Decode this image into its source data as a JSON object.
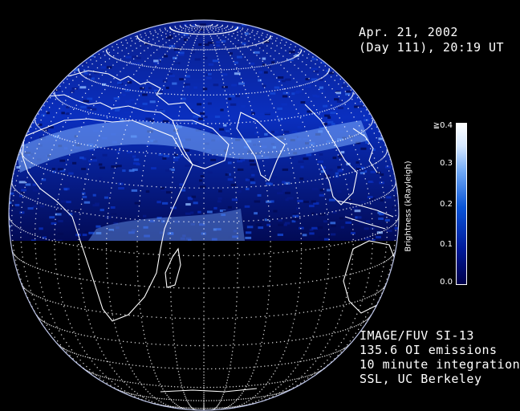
{
  "header": {
    "date_line1": "Apr. 21, 2002",
    "date_line2": "(Day 111), 20:19 UT"
  },
  "colorbar": {
    "label": "Brightness (kRayleigh)",
    "ticks": [
      "≧0.4",
      "0.3",
      "0.2",
      "0.1",
      "0.0"
    ],
    "range": [
      0.0,
      0.4
    ],
    "colors": {
      "low": "#00004a",
      "mid": "#0a55d8",
      "high": "#ffffff"
    }
  },
  "credits": {
    "line1": "IMAGE/FUV SI-13",
    "line2": "135.6 OI emissions",
    "line3": "10 minute integration",
    "line4": "SSL, UC Berkeley"
  },
  "globe": {
    "background_color": "#000000",
    "grid_color": "#ffffff",
    "coastline_color": "#ffffff",
    "emission_color": "#0a2fbf"
  }
}
